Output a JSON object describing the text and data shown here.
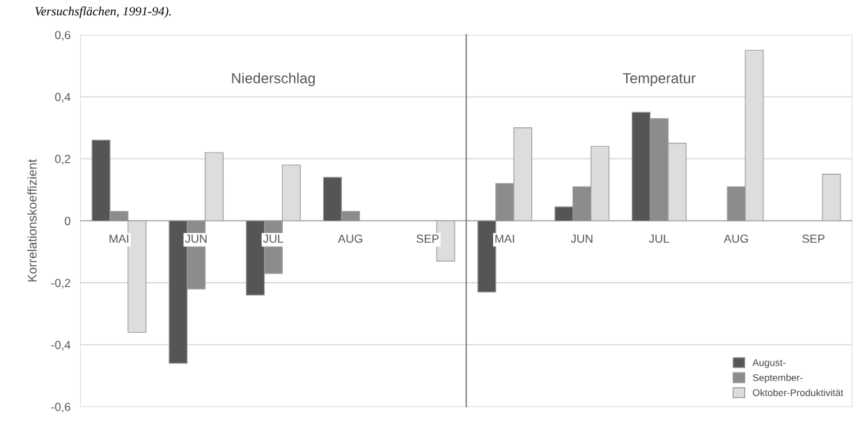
{
  "chart_data": [
    {
      "type": "bar",
      "title": "Niederschlag",
      "ylabel": "Korrelationskoeffizient",
      "annotations": [
        "Versuchsflächen, 1991-94)."
      ],
      "categories": [
        "MAI",
        "JUN",
        "JUL",
        "AUG",
        "SEP"
      ],
      "ylim": [
        -0.6,
        0.6
      ],
      "yticks": [
        {
          "value": -0.6,
          "label": "-0,6"
        },
        {
          "value": -0.4,
          "label": "-0,4"
        },
        {
          "value": -0.2,
          "label": "-0,2"
        },
        {
          "value": 0,
          "label": "0"
        },
        {
          "value": 0.2,
          "label": "0,2"
        },
        {
          "value": 0.4,
          "label": "0,4"
        },
        {
          "value": 0.6,
          "label": "0,6"
        }
      ],
      "grid": "y",
      "legend": false,
      "series": [
        {
          "color": "#555555",
          "values": [
            0.26,
            -0.46,
            -0.24,
            0.14,
            null
          ]
        },
        {
          "color": "#8c8c8c",
          "values": [
            0.03,
            -0.22,
            -0.17,
            0.03,
            null
          ]
        },
        {
          "color": "#dddddd",
          "values": [
            -0.36,
            0.22,
            0.18,
            null,
            -0.13
          ]
        }
      ]
    },
    {
      "type": "bar",
      "title": "Temperatur",
      "categories": [
        "MAI",
        "JUN",
        "JUL",
        "AUG",
        "SEP"
      ],
      "ylim": [
        -0.6,
        0.6
      ],
      "tick_labels": "x",
      "grid": "y",
      "legend": "bottom right",
      "series": [
        {
          "name": "August-",
          "color": "#555555",
          "values": [
            -0.23,
            0.045,
            0.35,
            null,
            null
          ]
        },
        {
          "name": "September-",
          "color": "#8c8c8c",
          "values": [
            0.12,
            0.11,
            0.33,
            0.11,
            null
          ]
        },
        {
          "name": "Oktober-Produktivität",
          "color": "#dddddd",
          "values": [
            0.3,
            0.24,
            0.25,
            0.55,
            0.15
          ]
        }
      ]
    }
  ]
}
